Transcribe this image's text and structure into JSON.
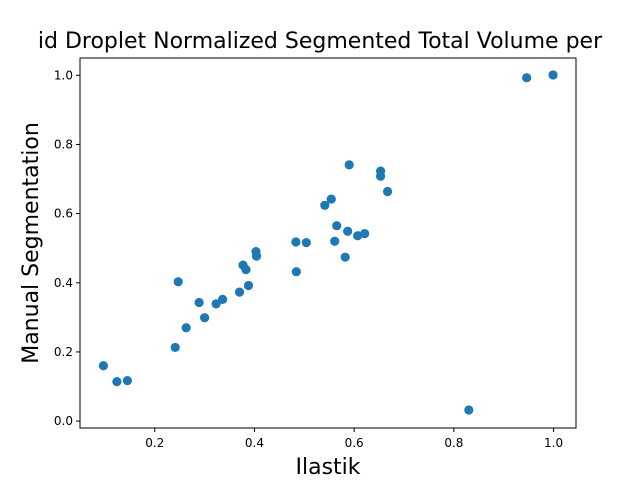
{
  "chart_data": {
    "type": "scatter",
    "title": "id Droplet Normalized Segmented Total Volume per",
    "xlabel": "Ilastik",
    "ylabel": "Manual Segmentation",
    "xlim": [
      0.05,
      1.045
    ],
    "ylim": [
      -0.02,
      1.05
    ],
    "xticks": [
      0.2,
      0.4,
      0.6,
      0.8,
      1.0
    ],
    "xtick_labels": [
      "0.2",
      "0.4",
      "0.6",
      "0.8",
      "1.0"
    ],
    "yticks": [
      0.0,
      0.2,
      0.4,
      0.6,
      0.8,
      1.0
    ],
    "ytick_labels": [
      "0.0",
      "0.2",
      "0.4",
      "0.6",
      "0.8",
      "1.0"
    ],
    "grid": false,
    "color": "#1f77b4",
    "x": [
      0.097,
      0.124,
      0.145,
      0.241,
      0.247,
      0.263,
      0.289,
      0.3,
      0.323,
      0.336,
      0.37,
      0.377,
      0.383,
      0.388,
      0.403,
      0.404,
      0.483,
      0.484,
      0.504,
      0.541,
      0.554,
      0.561,
      0.565,
      0.582,
      0.587,
      0.59,
      0.607,
      0.621,
      0.653,
      0.653,
      0.667,
      0.83,
      0.946,
      0.999
    ],
    "y": [
      0.16,
      0.114,
      0.117,
      0.213,
      0.403,
      0.27,
      0.343,
      0.299,
      0.339,
      0.352,
      0.373,
      0.451,
      0.438,
      0.392,
      0.49,
      0.477,
      0.518,
      0.432,
      0.516,
      0.624,
      0.642,
      0.52,
      0.565,
      0.474,
      0.549,
      0.741,
      0.536,
      0.542,
      0.723,
      0.708,
      0.664,
      0.032,
      0.993,
      1.001
    ]
  }
}
